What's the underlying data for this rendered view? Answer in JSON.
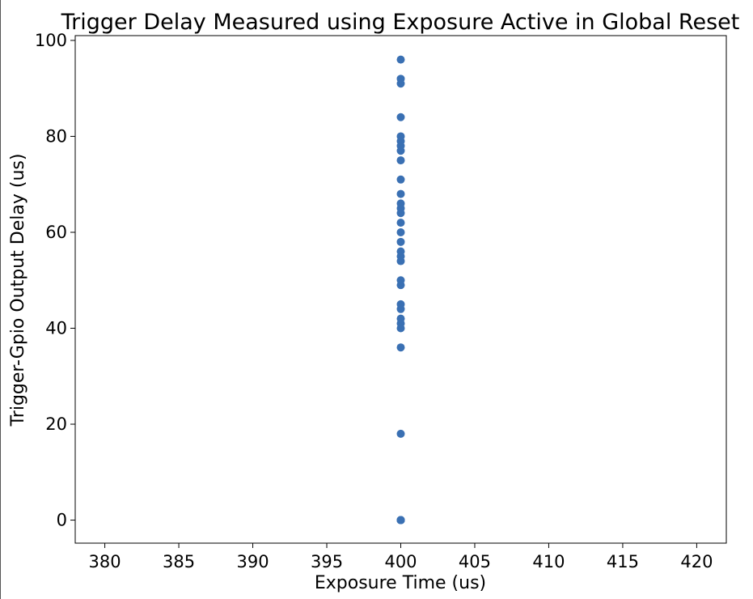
{
  "chart_data": {
    "type": "scatter",
    "title": "Trigger Delay Measured using Exposure Active in Global Reset",
    "xlabel": "Exposure Time (us)",
    "ylabel": "Trigger-Gpio Output Delay (us)",
    "xlim": [
      378,
      422
    ],
    "ylim": [
      -4.8,
      101
    ],
    "xticks": [
      380,
      385,
      390,
      395,
      400,
      405,
      410,
      415,
      420
    ],
    "yticks": [
      0,
      20,
      40,
      60,
      80,
      100
    ],
    "xtick_labels": [
      "380",
      "385",
      "390",
      "395",
      "400",
      "405",
      "410",
      "415",
      "420"
    ],
    "ytick_labels": [
      "0",
      "20",
      "40",
      "60",
      "80",
      "100"
    ],
    "grid": false,
    "legend": "none",
    "marker_color": "#3a70b3",
    "series": [
      {
        "x": [
          400,
          400,
          400,
          400,
          400,
          400,
          400,
          400,
          400,
          400,
          400,
          400,
          400,
          400,
          400,
          400,
          400,
          400,
          400,
          400,
          400,
          400,
          400,
          400,
          400,
          400,
          400,
          400,
          400,
          400,
          400,
          400,
          400,
          400,
          400
        ],
        "y": [
          96,
          92,
          91,
          84,
          80,
          79,
          78,
          77,
          75,
          71,
          68,
          66,
          65,
          64,
          62,
          60,
          58,
          56,
          55,
          54,
          50,
          49,
          45,
          44,
          42,
          41,
          40,
          36,
          18,
          0,
          0,
          0,
          0,
          0,
          0
        ]
      }
    ]
  }
}
